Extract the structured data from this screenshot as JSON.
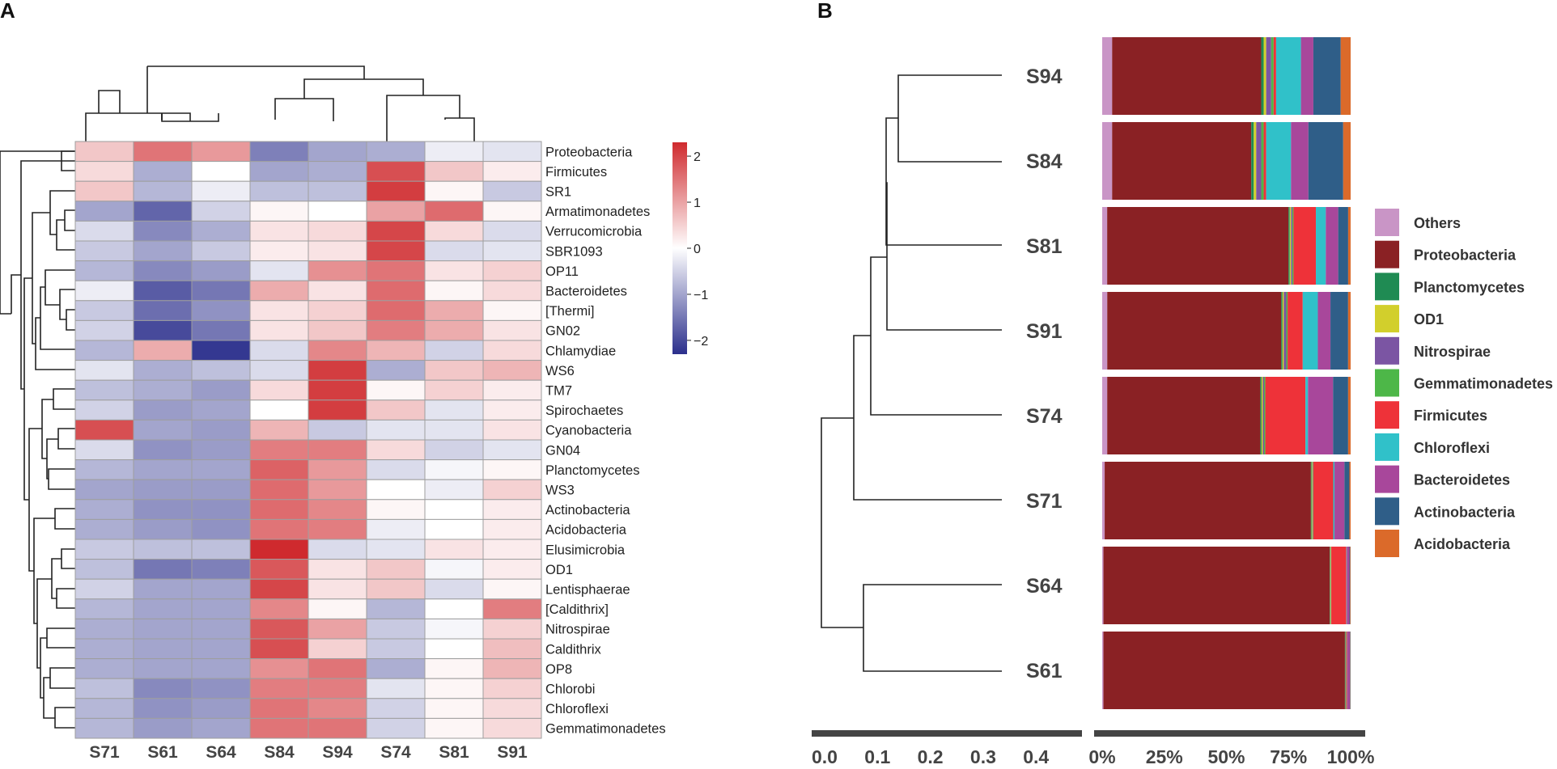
{
  "chart_data": [
    {
      "panel": "A",
      "type": "heatmap",
      "title": "",
      "columns": [
        "S71",
        "S61",
        "S64",
        "S84",
        "S94",
        "S74",
        "S81",
        "S91"
      ],
      "rows": [
        "Proteobacteria",
        "Firmicutes",
        "SR1",
        "Armatimonadetes",
        "Verrucomicrobia",
        "SBR1093",
        "OP11",
        "Bacteroidetes",
        "[Thermi]",
        "GN02",
        "Chlamydiae",
        "WS6",
        "TM7",
        "Spirochaetes",
        "Cyanobacteria",
        "GN04",
        "Planctomycetes",
        "WS3",
        "Actinobacteria",
        "Acidobacteria",
        "Elusimicrobia",
        "OD1",
        "Lentisphaerae",
        "[Caldithrix]",
        "Nitrospirae",
        "Caldithrix",
        "OP8",
        "Chlorobi",
        "Chloroflexi",
        "Gemmatimonadetes"
      ],
      "values": [
        [
          0.6,
          1.5,
          1.1,
          -1.4,
          -1.0,
          -0.9,
          -0.2,
          -0.3
        ],
        [
          0.4,
          -0.9,
          0.0,
          -1.0,
          -0.9,
          1.9,
          0.6,
          0.2
        ],
        [
          0.6,
          -0.8,
          -0.2,
          -0.7,
          -0.7,
          2.1,
          0.1,
          -0.6
        ],
        [
          -1.0,
          -1.7,
          -0.5,
          0.1,
          0.0,
          1.0,
          1.6,
          0.1
        ],
        [
          -0.4,
          -1.3,
          -0.9,
          0.3,
          0.4,
          2.0,
          0.4,
          -0.4
        ],
        [
          -0.6,
          -1.0,
          -0.6,
          0.2,
          0.3,
          2.0,
          -0.4,
          -0.3
        ],
        [
          -0.8,
          -1.3,
          -1.1,
          -0.3,
          1.2,
          1.5,
          0.3,
          0.5
        ],
        [
          -0.2,
          -1.8,
          -1.5,
          0.9,
          0.3,
          1.6,
          0.1,
          0.4
        ],
        [
          -0.6,
          -1.6,
          -1.2,
          0.3,
          0.5,
          1.6,
          0.9,
          0.1
        ],
        [
          -0.5,
          -2.0,
          -1.5,
          0.3,
          0.6,
          1.4,
          0.9,
          0.3
        ],
        [
          -0.8,
          0.9,
          -2.2,
          -0.4,
          1.3,
          0.8,
          -0.5,
          0.4
        ],
        [
          -0.3,
          -0.9,
          -0.7,
          -0.4,
          2.1,
          -0.9,
          0.6,
          0.8
        ],
        [
          -0.7,
          -0.9,
          -1.1,
          0.4,
          2.1,
          0.1,
          0.5,
          0.2
        ],
        [
          -0.5,
          -1.1,
          -1.0,
          0.0,
          2.1,
          0.6,
          -0.3,
          0.2
        ],
        [
          1.9,
          -1.0,
          -1.1,
          0.8,
          -0.6,
          -0.3,
          -0.3,
          0.3
        ],
        [
          -0.4,
          -1.2,
          -1.1,
          1.4,
          1.4,
          0.4,
          -0.5,
          -0.3
        ],
        [
          -0.8,
          -1.0,
          -1.0,
          1.7,
          1.1,
          -0.4,
          -0.1,
          0.1
        ],
        [
          -1.0,
          -1.1,
          -1.1,
          1.6,
          1.1,
          0.0,
          -0.2,
          0.5
        ],
        [
          -0.9,
          -1.2,
          -1.2,
          1.6,
          1.3,
          0.1,
          0.0,
          0.2
        ],
        [
          -0.9,
          -1.1,
          -1.2,
          1.5,
          1.4,
          -0.2,
          0.0,
          0.2
        ],
        [
          -0.6,
          -0.7,
          -0.7,
          2.3,
          -0.4,
          -0.3,
          0.3,
          0.2
        ],
        [
          -0.7,
          -1.5,
          -1.4,
          1.8,
          0.3,
          0.6,
          -0.1,
          0.2
        ],
        [
          -0.5,
          -1.0,
          -1.0,
          2.0,
          0.3,
          0.6,
          -0.4,
          0.1
        ],
        [
          -0.8,
          -1.0,
          -1.0,
          1.3,
          0.1,
          -0.8,
          0.0,
          1.4
        ],
        [
          -0.9,
          -1.0,
          -1.0,
          1.8,
          1.0,
          -0.6,
          -0.1,
          0.5
        ],
        [
          -0.9,
          -1.0,
          -1.0,
          1.9,
          0.5,
          -0.6,
          0.0,
          0.7
        ],
        [
          -0.9,
          -1.0,
          -1.0,
          1.2,
          1.5,
          -0.9,
          0.1,
          0.8
        ],
        [
          -0.7,
          -1.3,
          -1.2,
          1.4,
          1.4,
          -0.3,
          0.1,
          0.5
        ],
        [
          -0.8,
          -1.2,
          -1.1,
          1.5,
          1.3,
          -0.5,
          0.1,
          0.4
        ],
        [
          -0.8,
          -1.1,
          -1.0,
          1.5,
          1.5,
          -0.5,
          0.1,
          0.4
        ]
      ],
      "color_scale": {
        "min": -2.3,
        "max": 2.3,
        "low": "#2b2f8c",
        "mid": "#ffffff",
        "high": "#cf2a2e"
      },
      "colorbar_ticks": [
        "2",
        "1",
        "0",
        "−1",
        "−2"
      ]
    },
    {
      "panel": "B",
      "type": "bar",
      "orientation": "horizontal",
      "stacked": true,
      "title": "",
      "samples": [
        "S94",
        "S84",
        "S81",
        "S91",
        "S74",
        "S71",
        "S64",
        "S61"
      ],
      "series": [
        {
          "name": "Others",
          "color": "#c995c6",
          "values": [
            4,
            4,
            2,
            2,
            2,
            1,
            0.5,
            0.5
          ]
        },
        {
          "name": "Proteobacteria",
          "color": "#8a2124",
          "values": [
            60,
            56,
            73,
            69,
            61,
            83,
            90,
            97
          ]
        },
        {
          "name": "Planctomycetes",
          "color": "#1f8b53",
          "values": [
            1,
            1,
            0.5,
            0.5,
            0.5,
            0.3,
            0.2,
            0.2
          ]
        },
        {
          "name": "OD1",
          "color": "#d2cf2c",
          "values": [
            1,
            1,
            0.5,
            0.5,
            0.5,
            0.3,
            0.2,
            0.1
          ]
        },
        {
          "name": "Nitrospirae",
          "color": "#7b55a3",
          "values": [
            2,
            2,
            0.5,
            1,
            0.5,
            0.2,
            0.1,
            0.1
          ]
        },
        {
          "name": "Gemmatimonadetes",
          "color": "#4db748",
          "values": [
            1,
            1,
            0.5,
            0.5,
            0.5,
            0.2,
            0.1,
            0.1
          ]
        },
        {
          "name": "Firmicutes",
          "color": "#ee3239",
          "values": [
            1,
            1,
            9,
            6,
            16,
            8,
            6,
            0.4
          ]
        },
        {
          "name": "Chloroflexi",
          "color": "#30c1c9",
          "values": [
            10,
            10,
            4,
            6,
            1,
            0.5,
            0.2,
            0.1
          ]
        },
        {
          "name": "Bacteroidetes",
          "color": "#a8479b",
          "values": [
            5,
            7,
            5,
            5,
            10,
            4,
            1,
            1
          ]
        },
        {
          "name": "Actinobacteria",
          "color": "#2f5e88",
          "values": [
            11,
            14,
            4,
            7,
            6,
            2,
            0.3,
            0.2
          ]
        },
        {
          "name": "Acidobacteria",
          "color": "#db6a2a",
          "values": [
            4,
            3,
            1,
            1,
            1,
            0.5,
            0.2,
            0.1
          ]
        }
      ],
      "xlim": [
        0,
        100
      ],
      "x_ticks": [
        "0%",
        "25%",
        "50%",
        "75%",
        "100%"
      ],
      "dendrogram_axis_ticks": [
        "0.0",
        "0.1",
        "0.2",
        "0.3",
        "0.4"
      ],
      "dendrogram_axis_range": [
        0.0,
        0.48
      ],
      "legend_position": "right"
    }
  ],
  "panel_labels": {
    "a": "A",
    "b": "B"
  }
}
